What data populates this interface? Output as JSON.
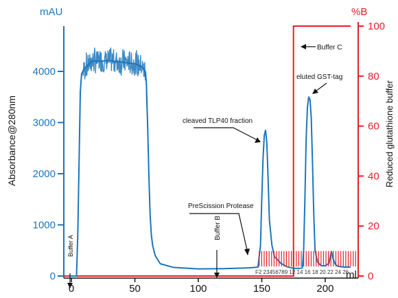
{
  "chart_data": {
    "type": "line",
    "xlabel": "ml",
    "x_ticks": [
      0,
      50,
      100,
      150,
      200
    ],
    "xlim": [
      -6,
      226
    ],
    "left_axis": {
      "unit": "mAU",
      "label": "Absorbance@280nm",
      "ticks": [
        0,
        1000,
        2000,
        3000,
        4000
      ],
      "range": [
        0,
        5000
      ],
      "color": "#1b75bb"
    },
    "right_axis": {
      "unit": "%B",
      "label": "Reduced glutathione buffer",
      "ticks": [
        0,
        20,
        40,
        60,
        80,
        100
      ],
      "range": [
        0,
        100
      ],
      "color": "#e41e26"
    },
    "series": [
      {
        "axis": "left",
        "color": "#1b75bb",
        "x": [
          -2,
          4,
          5,
          6,
          7,
          8,
          9,
          10,
          11,
          12,
          14,
          16,
          18,
          20,
          30,
          40,
          50,
          55,
          58,
          59,
          60,
          61,
          62,
          63,
          64,
          66,
          70,
          80,
          100,
          120,
          140,
          147,
          149,
          150,
          151,
          152,
          153,
          154,
          155,
          156,
          158,
          160,
          165,
          170,
          175,
          180,
          182,
          183,
          184,
          185,
          186,
          187,
          188,
          189,
          190,
          191,
          192,
          194,
          197,
          200,
          203,
          204,
          205,
          206,
          208,
          210,
          215,
          220
        ],
        "y": [
          0,
          0,
          800,
          2200,
          3600,
          3950,
          4000,
          4050,
          4080,
          4100,
          4150,
          4200,
          4200,
          4200,
          4210,
          4180,
          4150,
          4100,
          4000,
          3800,
          3000,
          2000,
          1200,
          800,
          600,
          400,
          240,
          170,
          140,
          145,
          160,
          175,
          600,
          1500,
          2300,
          2750,
          2850,
          2600,
          1900,
          1100,
          600,
          380,
          250,
          180,
          150,
          150,
          160,
          500,
          1500,
          2700,
          3300,
          3500,
          3450,
          3100,
          2200,
          1200,
          500,
          270,
          200,
          200,
          250,
          380,
          480,
          350,
          230,
          190,
          175,
          175
        ],
        "noise_region": [
          9,
          61
        ]
      },
      {
        "axis": "right",
        "color": "#e41e26",
        "x": [
          -6,
          175,
          175,
          220
        ],
        "y": [
          0,
          0,
          100,
          100
        ]
      }
    ],
    "fractions": {
      "color": "#e41e26",
      "range": [
        148,
        224
      ],
      "count": 40,
      "height_pct": 10,
      "label": "F2 23456789 12 14 16 18 20 22 24 26"
    },
    "annotations": [
      {
        "text": "Buffer A",
        "x": 0,
        "rotated": true
      },
      {
        "text": "Buffer B",
        "x": 115,
        "rotated": true
      },
      {
        "text": "Buffer C",
        "x": 180
      },
      {
        "text": "eluted GST-tag",
        "x": 193
      },
      {
        "text": "cleaved TLP40 fraction",
        "x": 150
      },
      {
        "text": "PreScission Protease",
        "x": 143
      }
    ]
  }
}
